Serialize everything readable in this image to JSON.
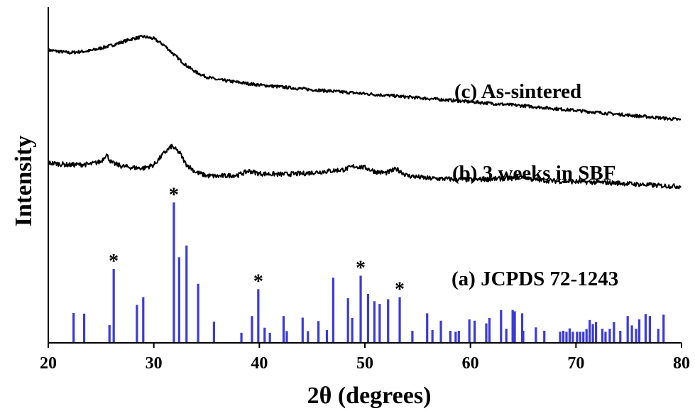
{
  "chart_data": {
    "type": "line",
    "xlabel": "2θ (degrees)",
    "ylabel": "Intensity",
    "xlim": [
      20,
      80
    ],
    "x_ticks": [
      "20",
      "30",
      "40",
      "50",
      "60",
      "70",
      "80"
    ],
    "ylim": [
      0,
      100
    ],
    "colors": {
      "pattern": "#000000",
      "reference": "#3a3ad8",
      "axis": "#000000"
    },
    "series": [
      {
        "name": "(c) As-sintered",
        "points": [
          [
            20,
            87.2
          ],
          [
            22,
            86.4
          ],
          [
            24,
            87.0
          ],
          [
            26,
            88.6
          ],
          [
            28,
            90.6
          ],
          [
            29,
            91.2
          ],
          [
            30,
            90.6
          ],
          [
            31,
            88.6
          ],
          [
            32,
            85.6
          ],
          [
            33,
            82.8
          ],
          [
            34,
            80.6
          ],
          [
            35,
            79.2
          ],
          [
            36,
            78.4
          ],
          [
            38,
            77.6
          ],
          [
            40,
            76.8
          ],
          [
            45,
            75.4
          ],
          [
            50,
            74.2
          ],
          [
            55,
            73.0
          ],
          [
            60,
            71.8
          ],
          [
            65,
            70.6
          ],
          [
            70,
            69.2
          ],
          [
            75,
            67.8
          ],
          [
            78,
            67.0
          ],
          [
            80,
            66.4
          ]
        ]
      },
      {
        "name": "(b) 3 weeks in SBF",
        "points": [
          [
            20,
            53.6
          ],
          [
            22,
            53.0
          ],
          [
            24,
            53.2
          ],
          [
            25,
            54.0
          ],
          [
            25.5,
            56.2
          ],
          [
            26,
            53.6
          ],
          [
            27,
            52.6
          ],
          [
            28,
            52.2
          ],
          [
            29,
            52.0
          ],
          [
            30,
            53.0
          ],
          [
            31,
            56.6
          ],
          [
            31.7,
            58.6
          ],
          [
            32.5,
            56.4
          ],
          [
            33,
            53.4
          ],
          [
            34,
            50.8
          ],
          [
            35,
            49.8
          ],
          [
            36,
            49.6
          ],
          [
            38,
            50.0
          ],
          [
            39,
            51.2
          ],
          [
            40,
            50.4
          ],
          [
            42,
            50.2
          ],
          [
            44,
            50.4
          ],
          [
            46,
            51.0
          ],
          [
            48,
            51.6
          ],
          [
            49,
            52.6
          ],
          [
            50,
            52.2
          ],
          [
            51,
            51.0
          ],
          [
            52,
            50.6
          ],
          [
            53,
            51.8
          ],
          [
            54,
            49.8
          ],
          [
            56,
            49.0
          ],
          [
            58,
            48.8
          ],
          [
            60,
            48.6
          ],
          [
            62,
            48.8
          ],
          [
            64,
            49.0
          ],
          [
            65,
            49.6
          ],
          [
            66,
            48.6
          ],
          [
            68,
            48.2
          ],
          [
            70,
            48.0
          ],
          [
            72,
            47.8
          ],
          [
            74,
            47.6
          ],
          [
            76,
            47.2
          ],
          [
            78,
            46.8
          ],
          [
            80,
            46.6
          ]
        ]
      }
    ],
    "reference_pattern": {
      "name": "(a) JCPDS 72-1243",
      "sticks": [
        [
          22.4,
          8.9
        ],
        [
          23.4,
          8.7
        ],
        [
          25.8,
          5.3
        ],
        [
          26.2,
          22.0
        ],
        [
          28.4,
          11.3
        ],
        [
          29.0,
          13.6
        ],
        [
          31.9,
          41.8
        ],
        [
          32.4,
          25.5
        ],
        [
          33.1,
          29.0
        ],
        [
          34.2,
          17.6
        ],
        [
          35.7,
          6.3
        ],
        [
          38.3,
          3.0
        ],
        [
          39.3,
          8.0
        ],
        [
          39.9,
          16.0
        ],
        [
          40.5,
          4.5
        ],
        [
          41.0,
          3.0
        ],
        [
          42.3,
          8.0
        ],
        [
          42.6,
          3.5
        ],
        [
          44.1,
          7.5
        ],
        [
          44.6,
          3.5
        ],
        [
          45.6,
          6.5
        ],
        [
          46.4,
          3.8
        ],
        [
          47.0,
          19.4
        ],
        [
          48.4,
          13.3
        ],
        [
          48.8,
          7.4
        ],
        [
          49.6,
          20.0
        ],
        [
          50.3,
          14.6
        ],
        [
          50.9,
          12.4
        ],
        [
          51.4,
          11.6
        ],
        [
          52.2,
          13.0
        ],
        [
          53.3,
          13.6
        ],
        [
          54.5,
          3.6
        ],
        [
          55.9,
          8.8
        ],
        [
          56.4,
          3.8
        ],
        [
          57.2,
          6.6
        ],
        [
          58.1,
          3.6
        ],
        [
          58.6,
          3.3
        ],
        [
          58.9,
          3.6
        ],
        [
          59.9,
          7.0
        ],
        [
          60.4,
          6.6
        ],
        [
          61.5,
          5.8
        ],
        [
          61.8,
          7.4
        ],
        [
          62.9,
          9.8
        ],
        [
          63.4,
          4.2
        ],
        [
          64.0,
          9.8
        ],
        [
          64.2,
          9.4
        ],
        [
          64.9,
          8.8
        ],
        [
          65.0,
          3.6
        ],
        [
          66.2,
          4.6
        ],
        [
          67.0,
          3.6
        ],
        [
          68.5,
          3.3
        ],
        [
          68.8,
          3.6
        ],
        [
          69.1,
          3.3
        ],
        [
          69.4,
          4.3
        ],
        [
          69.7,
          3.3
        ],
        [
          70.1,
          3.3
        ],
        [
          70.4,
          3.3
        ],
        [
          70.7,
          3.3
        ],
        [
          71.0,
          4.1
        ],
        [
          71.3,
          6.8
        ],
        [
          71.6,
          5.6
        ],
        [
          71.9,
          6.2
        ],
        [
          72.5,
          4.2
        ],
        [
          72.8,
          3.3
        ],
        [
          73.2,
          4.2
        ],
        [
          73.6,
          6.2
        ],
        [
          74.2,
          3.6
        ],
        [
          74.9,
          8.0
        ],
        [
          75.3,
          5.2
        ],
        [
          75.7,
          4.2
        ],
        [
          76.0,
          7.0
        ],
        [
          76.6,
          8.6
        ],
        [
          77.0,
          8.0
        ],
        [
          77.8,
          4.2
        ],
        [
          78.3,
          8.4
        ]
      ]
    },
    "markers": [
      {
        "label": "*",
        "x": 26.2
      },
      {
        "label": "*",
        "x": 31.9
      },
      {
        "label": "*",
        "x": 39.9
      },
      {
        "label": "*",
        "x": 49.6
      },
      {
        "label": "*",
        "x": 53.3
      }
    ]
  }
}
